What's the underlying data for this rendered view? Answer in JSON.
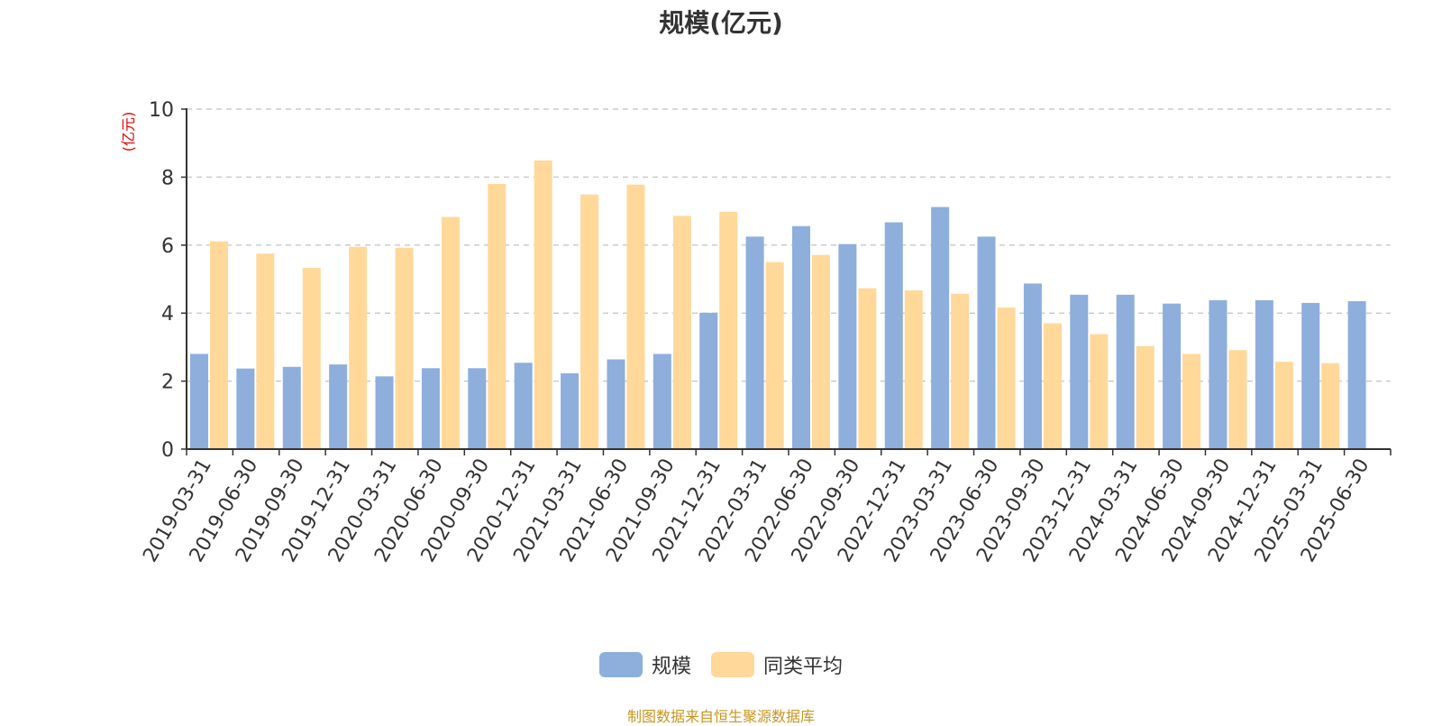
{
  "chart_data": {
    "type": "bar",
    "title": "规模(亿元)",
    "ylabel": "(亿元)",
    "xlabel": "",
    "ylim": [
      0,
      10
    ],
    "yticks": [
      0,
      2,
      4,
      6,
      8,
      10
    ],
    "grid": true,
    "legend_position": "bottom",
    "categories": [
      "2019-03-31",
      "2019-06-30",
      "2019-09-30",
      "2019-12-31",
      "2020-03-31",
      "2020-06-30",
      "2020-09-30",
      "2020-12-31",
      "2021-03-31",
      "2021-06-30",
      "2021-09-30",
      "2021-12-31",
      "2022-03-31",
      "2022-06-30",
      "2022-09-30",
      "2022-12-31",
      "2023-03-31",
      "2023-06-30",
      "2023-09-30",
      "2023-12-31",
      "2024-03-31",
      "2024-06-30",
      "2024-09-30",
      "2024-12-31",
      "2025-03-31",
      "2025-06-30"
    ],
    "series": [
      {
        "name": "规模",
        "color": "#8eaedc",
        "values": [
          2.8,
          2.37,
          2.42,
          2.49,
          2.14,
          2.38,
          2.38,
          2.54,
          2.23,
          2.64,
          2.8,
          4.01,
          6.25,
          6.56,
          6.03,
          6.67,
          7.12,
          6.25,
          4.87,
          4.54,
          4.54,
          4.28,
          4.38,
          4.38,
          4.3,
          4.35
        ]
      },
      {
        "name": "同类平均",
        "color": "#ffd89a",
        "values": [
          6.11,
          5.75,
          5.33,
          5.95,
          5.92,
          6.83,
          7.8,
          8.49,
          7.49,
          7.78,
          6.86,
          6.98,
          5.5,
          5.71,
          4.73,
          4.67,
          4.57,
          4.16,
          3.7,
          3.38,
          3.03,
          2.8,
          2.91,
          2.57,
          2.53,
          null
        ]
      }
    ]
  },
  "legend": {
    "items": [
      {
        "label": "规模",
        "color": "#8eaedc"
      },
      {
        "label": "同类平均",
        "color": "#ffd89a"
      }
    ]
  },
  "footer": {
    "source": "制图数据来自恒生聚源数据库"
  }
}
